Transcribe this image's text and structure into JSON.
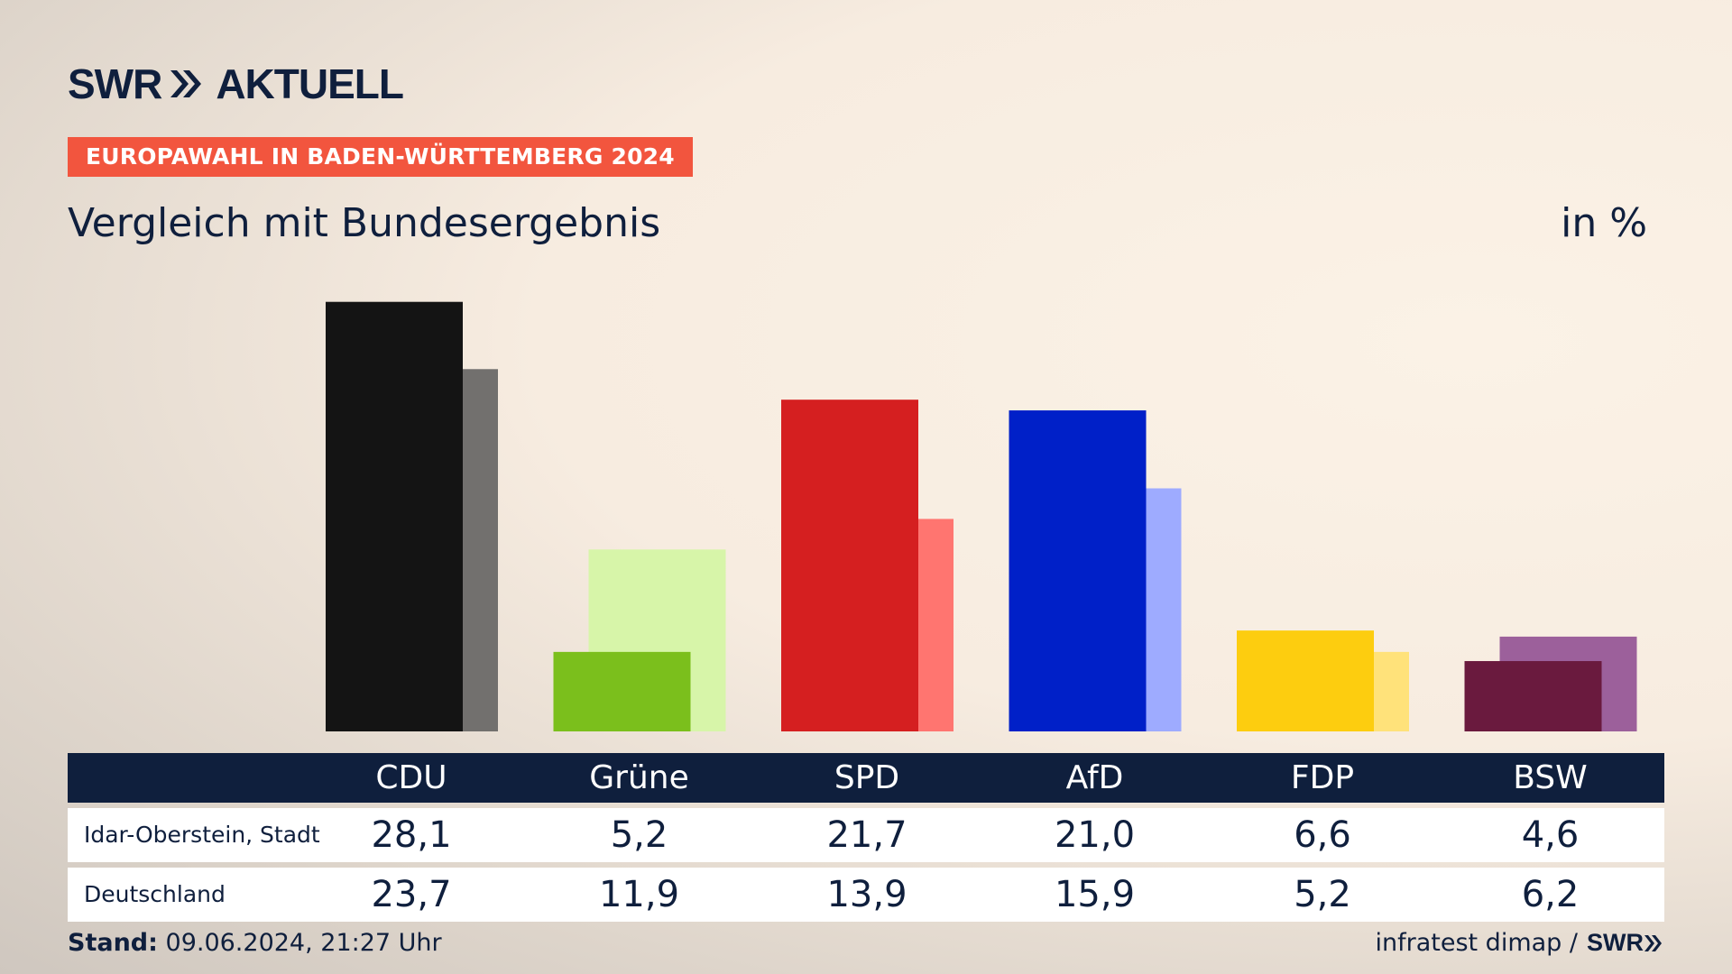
{
  "header": {
    "logo_left": "SWR",
    "logo_right": "AKTUELL",
    "badge": "EUROPAWAHL IN BADEN-WÜRTTEMBERG 2024",
    "subtitle": "Vergleich mit Bundesergebnis",
    "unit": "in %"
  },
  "chart_data": {
    "type": "bar",
    "title": "Vergleich mit Bundesergebnis",
    "ylabel": "in %",
    "ylim": [
      0,
      30
    ],
    "categories": [
      "CDU",
      "Grüne",
      "SPD",
      "AfD",
      "FDP",
      "BSW"
    ],
    "series": [
      {
        "name": "Idar-Oberstein, Stadt",
        "values": [
          28.1,
          5.2,
          21.7,
          21.0,
          6.6,
          4.6
        ],
        "display": [
          "28,1",
          "5,2",
          "21,7",
          "21,0",
          "6,6",
          "4,6"
        ],
        "colors": [
          "#141414",
          "#7bbf1c",
          "#d51f20",
          "#0020c8",
          "#fdcd0f",
          "#6a1a3e"
        ]
      },
      {
        "name": "Deutschland",
        "values": [
          23.7,
          11.9,
          13.9,
          15.9,
          5.2,
          6.2
        ],
        "display": [
          "23,7",
          "11,9",
          "13,9",
          "15,9",
          "5,2",
          "6,2"
        ],
        "colors": [
          "#72706e",
          "#d7f5a9",
          "#ff7570",
          "#9eabff",
          "#ffe27a",
          "#9c609b"
        ]
      }
    ]
  },
  "footer": {
    "stand_label": "Stand:",
    "stand_value": "09.06.2024, 21:27 Uhr",
    "source": "infratest dimap /",
    "source_logo": "SWR"
  }
}
